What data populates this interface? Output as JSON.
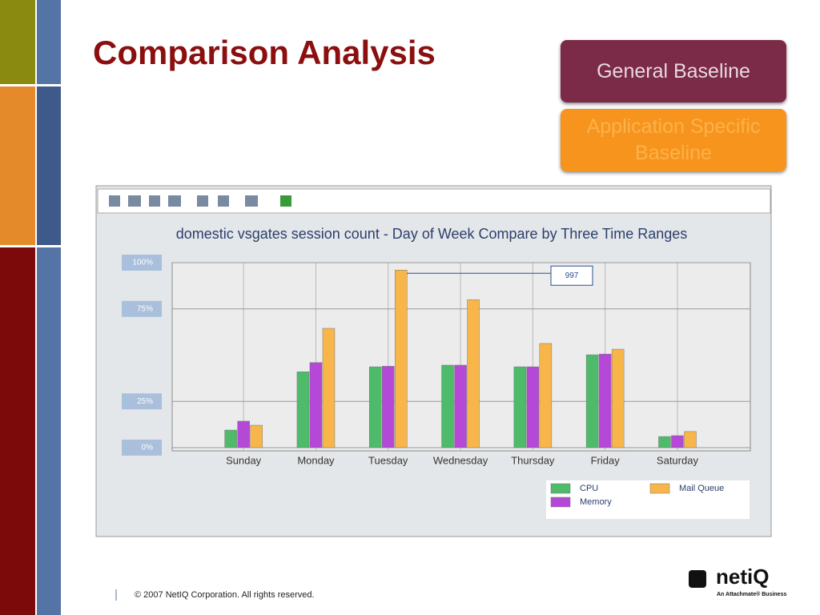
{
  "slide": {
    "title": "Comparison Analysis",
    "buttons": [
      "General Baseline",
      "Application Specific Baseline"
    ],
    "footer": "© 2007 NetIQ Corporation. All rights reserved.",
    "logo": "netiQ",
    "logo_tagline": "An Attachmate® Business"
  },
  "chart_data": {
    "type": "bar",
    "title": "domestic vsgates session count - Day of Week Compare by Three Time Ranges",
    "categories": [
      "Sunday",
      "Monday",
      "Tuesday",
      "Wednesday",
      "Thursday",
      "Friday",
      "Saturday"
    ],
    "series": [
      {
        "name": "CPU",
        "color": "#4dbb6a",
        "values": [
          9.5,
          41,
          43.7,
          44.6,
          43.7,
          50.2,
          6
        ]
      },
      {
        "name": "Memory",
        "color": "#b548d6",
        "values": [
          14.3,
          46,
          44,
          44.6,
          43.7,
          50.6,
          6.5
        ]
      },
      {
        "name": "Mail Queue",
        "color": "#f8b64a",
        "values": [
          12.1,
          64.5,
          96,
          80,
          56.3,
          53.2,
          8.7
        ]
      }
    ],
    "ylim": [
      0,
      100
    ],
    "yticks": [
      {
        "value": 0,
        "label": "0%"
      },
      {
        "value": 25,
        "label": "25%"
      },
      {
        "value": 75,
        "label": "75%"
      },
      {
        "value": 100,
        "label": "100%"
      }
    ],
    "grid": true,
    "annotation": "997"
  }
}
